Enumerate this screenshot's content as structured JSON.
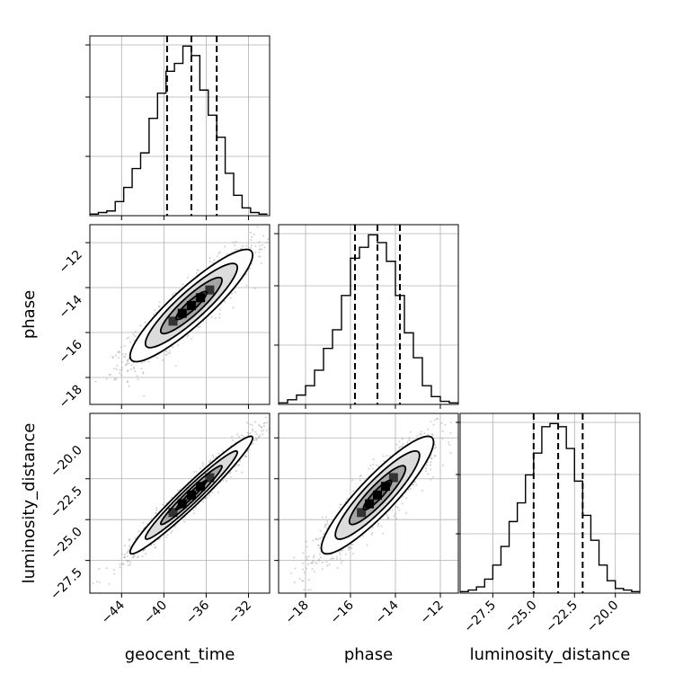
{
  "chart_data": {
    "type": "corner",
    "parameters": [
      "geocent_time",
      "phase",
      "luminosity_distance"
    ],
    "axis_labels": {
      "x": [
        "geocent_time",
        "phase",
        "luminosity_distance"
      ],
      "y": [
        "phase",
        "luminosity_distance"
      ]
    },
    "ranges": {
      "geocent_time": [
        -47,
        -30
      ],
      "phase": [
        -19.2,
        -11.2
      ],
      "luminosity_distance": [
        -29.5,
        -18.5
      ]
    },
    "ticks": {
      "geocent_time": [
        "-44",
        "-40",
        "-36",
        "-32"
      ],
      "phase": [
        "-18",
        "-16",
        "-14",
        "-12"
      ],
      "luminosity_distance": [
        "-27.5",
        "-25.0",
        "-22.5",
        "-20.0"
      ]
    },
    "tick_values": {
      "geocent_time": [
        -44,
        -40,
        -36,
        -32
      ],
      "phase": [
        -18,
        -16,
        -14,
        -12
      ],
      "luminosity_distance": [
        -27.5,
        -25.0,
        -22.5,
        -20.0
      ]
    },
    "quantiles": {
      "geocent_time": [
        -39.7,
        -37.4,
        -35.0
      ],
      "phase": [
        -15.8,
        -14.8,
        -13.8
      ],
      "luminosity_distance": [
        -25.0,
        -23.5,
        -22.0
      ]
    },
    "histograms": {
      "geocent_time": {
        "edges": [
          -47,
          -46.2,
          -45.4,
          -44.6,
          -43.8,
          -43,
          -42.2,
          -41.4,
          -40.6,
          -39.8,
          -39,
          -38.2,
          -37.4,
          -36.6,
          -35.8,
          -35,
          -34.2,
          -33.4,
          -32.6,
          -31.8,
          -31,
          -30.2
        ],
        "counts": [
          1,
          2,
          3,
          9,
          18,
          30,
          40,
          62,
          78,
          92,
          97,
          108,
          102,
          80,
          64,
          50,
          27,
          13,
          5,
          2,
          1
        ]
      },
      "phase": {
        "edges": [
          -19.2,
          -18.8,
          -18.4,
          -18,
          -17.6,
          -17.2,
          -16.8,
          -16.4,
          -16,
          -15.6,
          -15.2,
          -14.8,
          -14.4,
          -14,
          -13.6,
          -13.2,
          -12.8,
          -12.4,
          -12,
          -11.6,
          -11.2
        ],
        "counts": [
          1,
          3,
          6,
          12,
          22,
          36,
          48,
          70,
          94,
          101,
          109,
          104,
          92,
          70,
          46,
          30,
          12,
          5,
          2,
          1
        ]
      },
      "luminosity_distance": {
        "edges": [
          -29.5,
          -29,
          -28.5,
          -28,
          -27.5,
          -27,
          -26.5,
          -26,
          -25.5,
          -25,
          -24.5,
          -24,
          -23.5,
          -23,
          -22.5,
          -22,
          -21.5,
          -21,
          -20.5,
          -20,
          -19.5,
          -19,
          -18.5
        ],
        "counts": [
          1,
          2,
          4,
          9,
          18,
          30,
          46,
          58,
          76,
          90,
          107,
          109,
          107,
          93,
          72,
          50,
          34,
          18,
          8,
          3,
          2,
          1
        ]
      }
    },
    "pairs": [
      {
        "x": "geocent_time",
        "y": "phase",
        "mean": [
          -37.4,
          -14.8
        ],
        "sd": [
          2.9,
          1.25
        ],
        "corr": 0.9
      },
      {
        "x": "geocent_time",
        "y": "luminosity_distance",
        "mean": [
          -37.4,
          -23.5
        ],
        "sd": [
          2.9,
          1.8
        ],
        "corr": 0.97
      },
      {
        "x": "phase",
        "y": "luminosity_distance",
        "mean": [
          -14.8,
          -23.5
        ],
        "sd": [
          1.25,
          1.8
        ],
        "corr": 0.9
      }
    ],
    "levels_sigma": [
      0.5,
      1.0,
      1.5,
      2.0
    ],
    "grid": true
  }
}
